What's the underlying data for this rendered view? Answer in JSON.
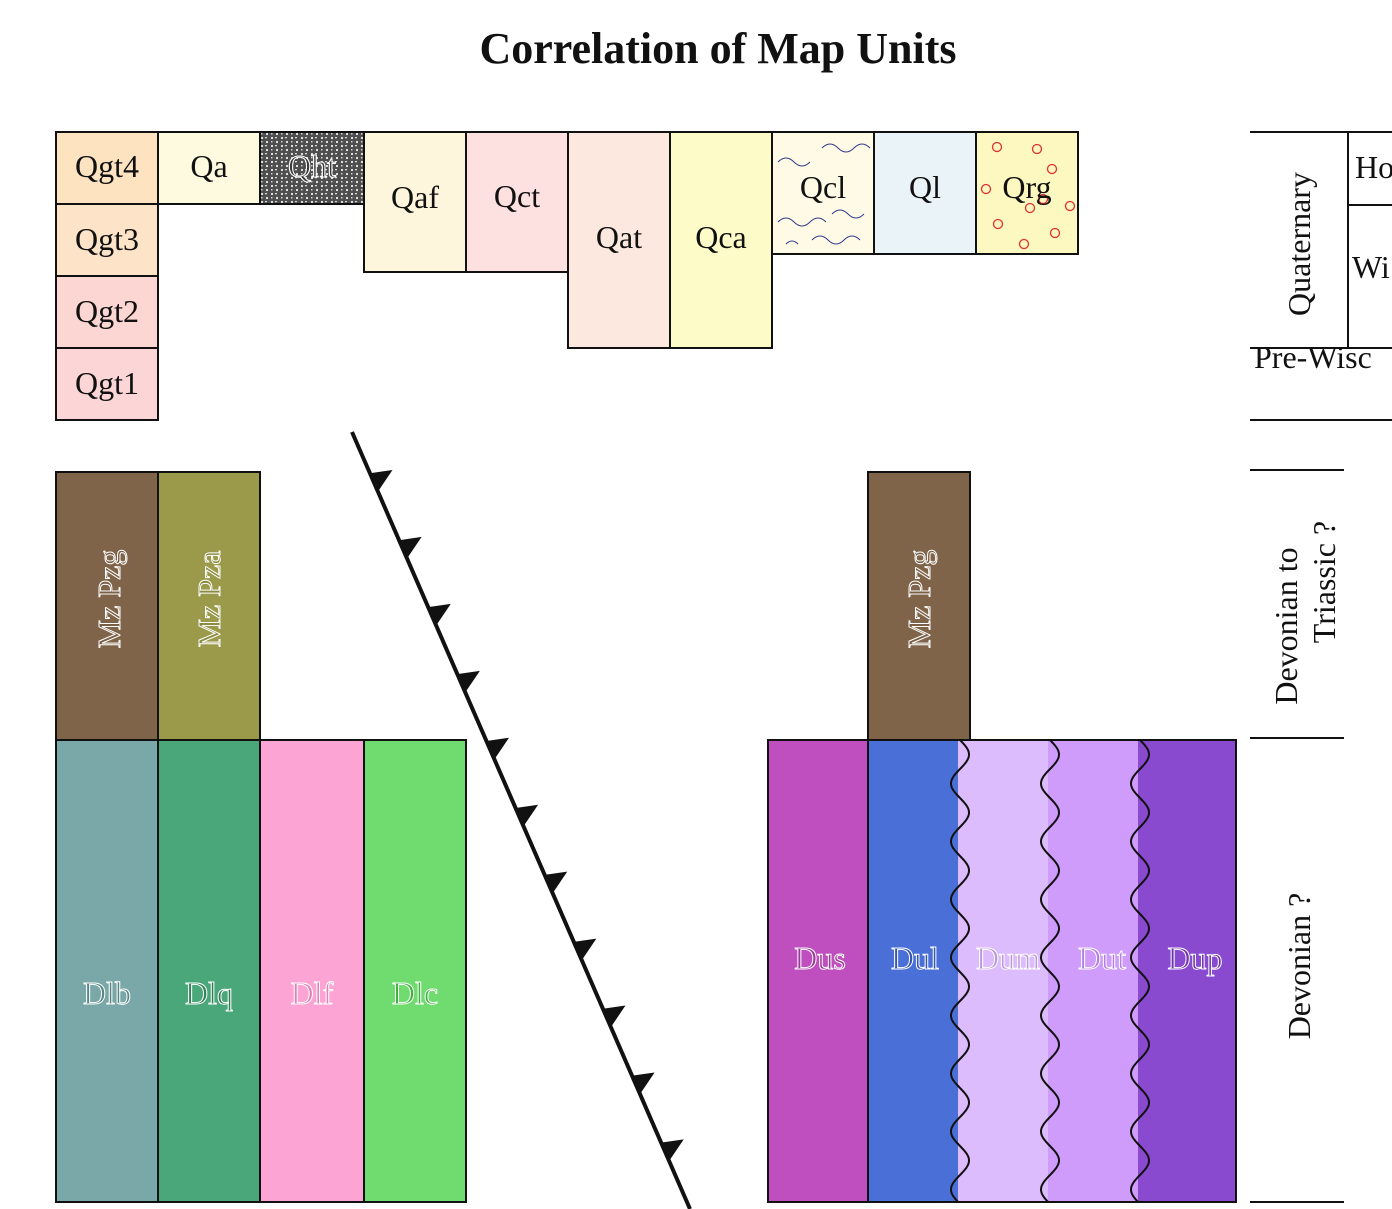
{
  "title": "Correlation of Map Units",
  "units": {
    "qgt4": {
      "label": "Qgt4",
      "color": "#fde3c0"
    },
    "qgt3": {
      "label": "Qgt3",
      "color": "#fde3c8"
    },
    "qgt2": {
      "label": "Qgt2",
      "color": "#fcd6d2"
    },
    "qgt1": {
      "label": "Qgt1",
      "color": "#fcd6d6"
    },
    "qa": {
      "label": "Qa",
      "color": "#fefae0"
    },
    "qht": {
      "label": "Qht",
      "color": "#5a5a5a"
    },
    "qaf": {
      "label": "Qaf",
      "color": "#fdf6dc"
    },
    "qct": {
      "label": "Qct",
      "color": "#fde0e0"
    },
    "qat": {
      "label": "Qat",
      "color": "#fde8e0"
    },
    "qca": {
      "label": "Qca",
      "color": "#fdfbc8"
    },
    "qcl": {
      "label": "Qcl",
      "color": "#fefae6"
    },
    "ql": {
      "label": "Ql",
      "color": "#eaf4f8"
    },
    "qrg": {
      "label": "Qrg",
      "color": "#fdf8c0"
    },
    "mzpzg_left": {
      "label": "Mz Pzg",
      "color": "#7f6449"
    },
    "mzpza": {
      "label": "Mz Pza",
      "color": "#9a9a4a"
    },
    "mzpzg_right": {
      "label": "Mz Pzg",
      "color": "#7f6449"
    },
    "dlb": {
      "label": "Dlb",
      "color": "#7aa8a8"
    },
    "dlq": {
      "label": "Dlq",
      "color": "#4aa77a"
    },
    "dlf": {
      "label": "Dlf",
      "color": "#fca5d4"
    },
    "dlc": {
      "label": "Dlc",
      "color": "#70dc70"
    },
    "dus": {
      "label": "Dus",
      "color": "#bf4fbf"
    },
    "dul": {
      "label": "Dul",
      "color": "#4a70d8"
    },
    "dum": {
      "label": "Dum",
      "color": "#dcbcfc"
    },
    "dut": {
      "label": "Dut",
      "color": "#d09cfc"
    },
    "dup": {
      "label": "Dup",
      "color": "#8a4ad0"
    }
  },
  "time_scale": {
    "quaternary": "Quaternary",
    "holocene": "Ho",
    "wisconsinan": "Wi",
    "pre_wisconsinan": "Pre-Wisc",
    "devonian_to_triassic_line1": "Devonian to",
    "devonian_to_triassic_line2": "Triassic ?",
    "devonian": "Devonian ?"
  },
  "accent_colors": {
    "outline": "#111111",
    "qrg_circles": "#e03030",
    "qcl_waves": "#303a8a"
  }
}
